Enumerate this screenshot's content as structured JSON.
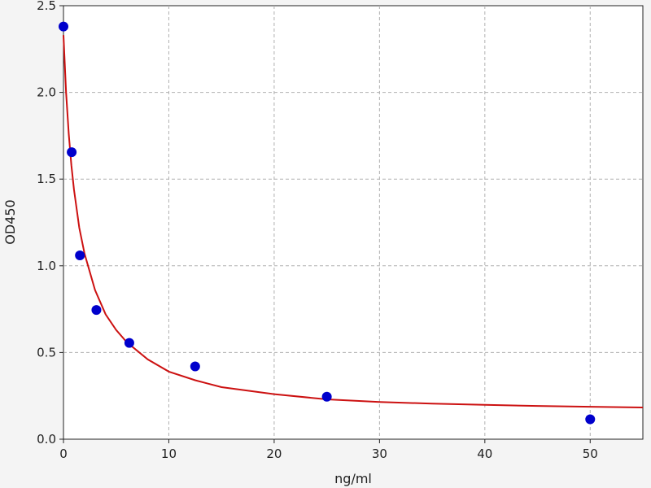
{
  "chart_data": {
    "type": "scatter",
    "xlabel": "ng/ml",
    "ylabel": "OD450",
    "xlim": [
      0,
      55
    ],
    "ylim": [
      0,
      2.5
    ],
    "x_ticks": [
      0,
      10,
      20,
      30,
      40,
      50
    ],
    "x_tick_labels": [
      "0",
      "10",
      "20",
      "30",
      "40",
      "50"
    ],
    "y_ticks": [
      0,
      0.5,
      1,
      1.5,
      2,
      2.5
    ],
    "y_tick_labels": [
      "0.0",
      "0.5",
      "1.0",
      "1.5",
      "2.0",
      "2.5"
    ],
    "grid": true,
    "points": {
      "x": [
        0,
        0.78,
        1.56,
        3.125,
        6.25,
        12.5,
        25,
        50
      ],
      "y": [
        2.38,
        1.655,
        1.06,
        0.745,
        0.555,
        0.42,
        0.245,
        0.115
      ],
      "color": "#0000cc"
    },
    "fit_curve": {
      "x": [
        0,
        0.25,
        0.5,
        0.75,
        1,
        1.5,
        2,
        3,
        4,
        5,
        6,
        8,
        10,
        12.5,
        15,
        20,
        25,
        30,
        35,
        40,
        45,
        50,
        55
      ],
      "y": [
        2.33,
        2.0,
        1.76,
        1.58,
        1.44,
        1.22,
        1.07,
        0.86,
        0.72,
        0.63,
        0.56,
        0.46,
        0.39,
        0.34,
        0.3,
        0.26,
        0.23,
        0.215,
        0.205,
        0.198,
        0.192,
        0.187,
        0.183
      ],
      "color": "#cc1111"
    }
  }
}
